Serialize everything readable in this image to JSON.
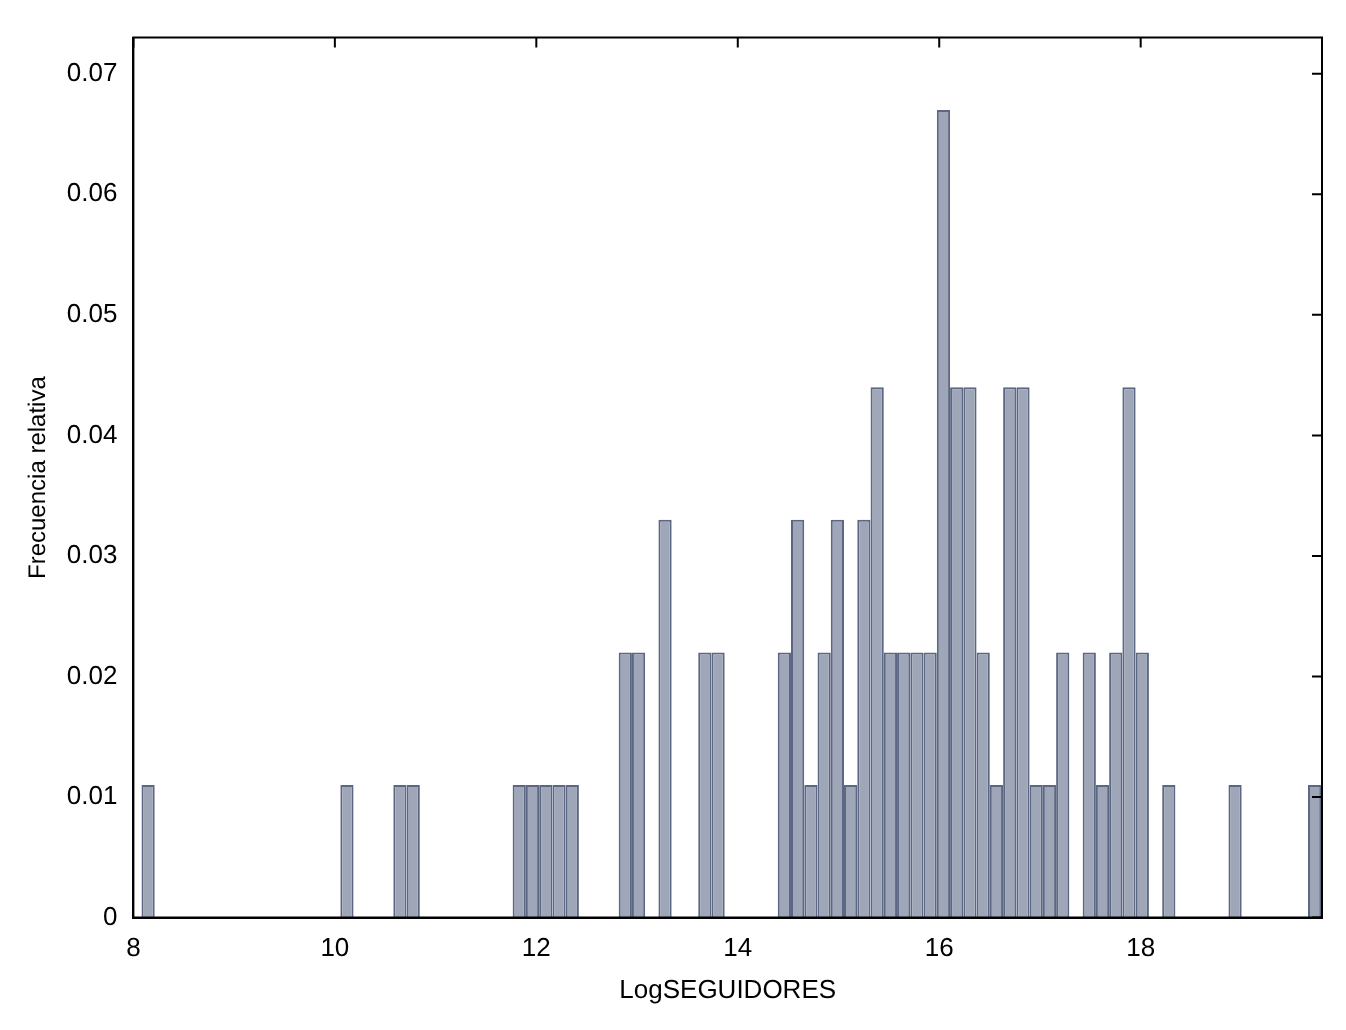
{
  "chart_data": {
    "type": "histogram",
    "xlabel": "LogSEGUIDORES",
    "ylabel": "Frecuencia relativa",
    "bins": [
      8.08,
      8.212,
      8.343,
      8.475,
      8.606,
      8.738,
      8.87,
      9.001,
      9.133,
      9.264,
      9.396,
      9.528,
      9.659,
      9.791,
      9.922,
      10.054,
      10.186,
      10.317,
      10.449,
      10.58,
      10.712,
      10.844,
      10.975,
      11.107,
      11.238,
      11.37,
      11.502,
      11.633,
      11.765,
      11.896,
      12.028,
      12.16,
      12.291,
      12.423,
      12.554,
      12.686,
      12.818,
      12.949,
      13.081,
      13.212,
      13.344,
      13.476,
      13.607,
      13.739,
      13.87,
      14.002,
      14.134,
      14.265,
      14.397,
      14.528,
      14.66,
      14.792,
      14.923,
      15.055,
      15.186,
      15.318,
      15.45,
      15.581,
      15.713,
      15.844,
      15.976,
      16.108,
      16.239,
      16.371,
      16.502,
      16.634,
      16.766,
      16.897,
      17.029,
      17.16,
      17.292,
      17.424,
      17.555,
      17.687,
      17.818,
      17.95,
      18.082,
      18.213,
      18.345,
      18.476,
      18.608,
      18.74,
      18.871,
      19.003,
      19.134,
      19.266,
      19.398,
      19.529,
      19.661,
      19.792
    ],
    "values": [
      0.011,
      0,
      0,
      0,
      0,
      0,
      0,
      0,
      0,
      0,
      0,
      0,
      0,
      0,
      0,
      0.011,
      0,
      0,
      0,
      0.011,
      0.011,
      0,
      0,
      0,
      0,
      0,
      0,
      0,
      0.011,
      0.011,
      0.011,
      0.011,
      0.011,
      0,
      0,
      0,
      0.022,
      0.022,
      0,
      0.033,
      0,
      0,
      0.022,
      0.022,
      0,
      0,
      0,
      0,
      0.022,
      0.033,
      0.011,
      0.022,
      0.033,
      0.011,
      0.033,
      0.044,
      0.022,
      0.022,
      0.022,
      0.022,
      0.067,
      0.044,
      0.044,
      0.022,
      0.011,
      0.044,
      0.044,
      0.011,
      0.011,
      0.022,
      0,
      0.022,
      0.011,
      0.022,
      0.044,
      0.022,
      0,
      0.011,
      0,
      0,
      0,
      0,
      0.011,
      0,
      0,
      0,
      0,
      0,
      0.011
    ],
    "color": "#9ea6b8",
    "xlim": [
      8,
      19.8
    ],
    "xticks": [
      8,
      10,
      12,
      14,
      16,
      18
    ],
    "ylim": [
      0,
      0.073
    ],
    "yticks": [
      0,
      0.01,
      0.02,
      0.03,
      0.04,
      0.05,
      0.06,
      0.07
    ]
  }
}
